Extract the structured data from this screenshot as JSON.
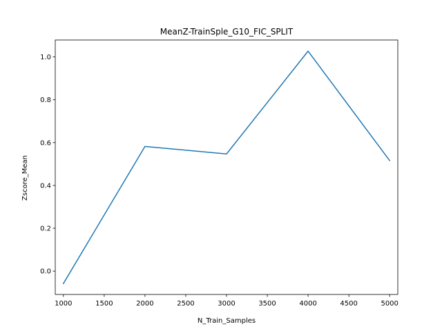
{
  "chart_data": {
    "type": "line",
    "title": "MeanZ-TrainSple_G10_FIC_SPLIT",
    "xlabel": "N_Train_Samples",
    "ylabel": "Zscore_Mean",
    "x": [
      1000,
      2000,
      3000,
      4000,
      5000
    ],
    "series": [
      {
        "values": [
          -0.058,
          0.582,
          0.547,
          1.027,
          0.516
        ],
        "color": "#1f77b4"
      }
    ],
    "xlim": [
      900,
      5100
    ],
    "ylim": [
      -0.109,
      1.079
    ],
    "xticks": [
      1000,
      1500,
      2000,
      2500,
      3000,
      3500,
      4000,
      4500,
      5000
    ],
    "yticks": [
      0.0,
      0.2,
      0.4,
      0.6,
      0.8,
      1.0
    ],
    "xtick_labels": [
      "1000",
      "1500",
      "2000",
      "2500",
      "3000",
      "3500",
      "4000",
      "4500",
      "5000"
    ],
    "ytick_labels": [
      "0.0",
      "0.2",
      "0.4",
      "0.6",
      "0.8",
      "1.0"
    ],
    "grid": false,
    "legend": "none"
  }
}
